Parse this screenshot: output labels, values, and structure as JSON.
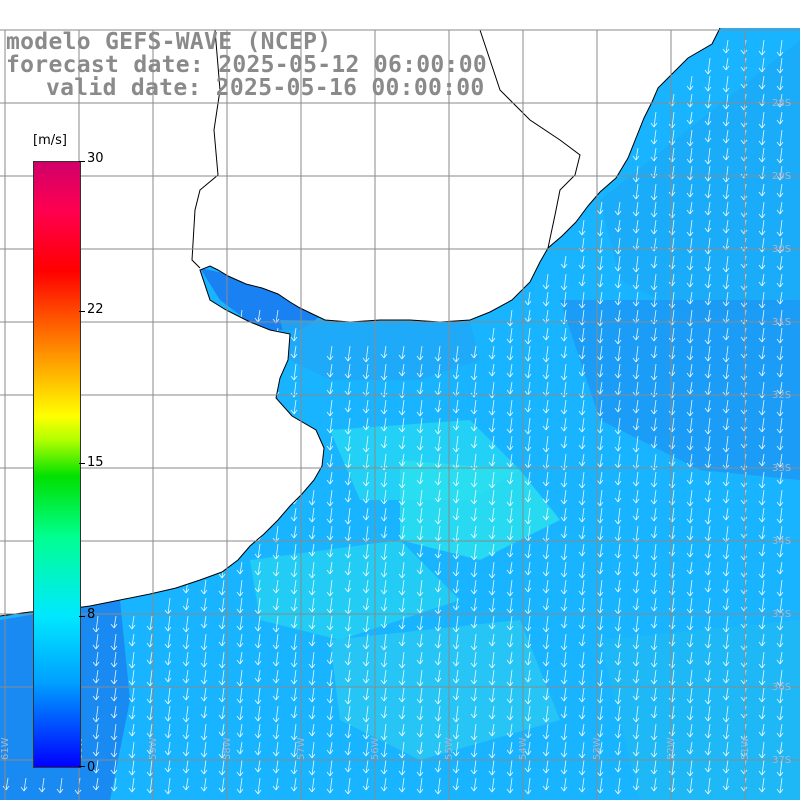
{
  "header": {
    "line1": "modelo GEFS-WAVE (NCEP)",
    "line2": "forecast date: 2025-05-12 06:00:00",
    "line3": "valid date: 2025-05-16 00:00:00"
  },
  "colorbar": {
    "unit": "[m/s]",
    "ticks": [
      "30",
      "22",
      "15",
      "8",
      "0"
    ],
    "gradient_colors": [
      "#0000ff",
      "#00a0ff",
      "#00e8ff",
      "#00ff90",
      "#00e000",
      "#b0ff00",
      "#ffff00",
      "#ff8000",
      "#ff0000",
      "#ff0050",
      "#d0006a"
    ]
  },
  "map": {
    "field": "wind speed and direction",
    "wind_direction": "from north / north-northeast",
    "land_color": "#ffffff",
    "coastline_color": "#000000",
    "grid_color": "#888888",
    "lon_labels": [
      "61W",
      "60W",
      "59W",
      "58W",
      "57W",
      "56W",
      "55W",
      "54W",
      "53W",
      "52W",
      "51W"
    ],
    "lat_labels": [
      "28S",
      "29S",
      "30S",
      "31S",
      "32S",
      "33S",
      "34S",
      "35S",
      "36S",
      "37S",
      "38S"
    ]
  }
}
